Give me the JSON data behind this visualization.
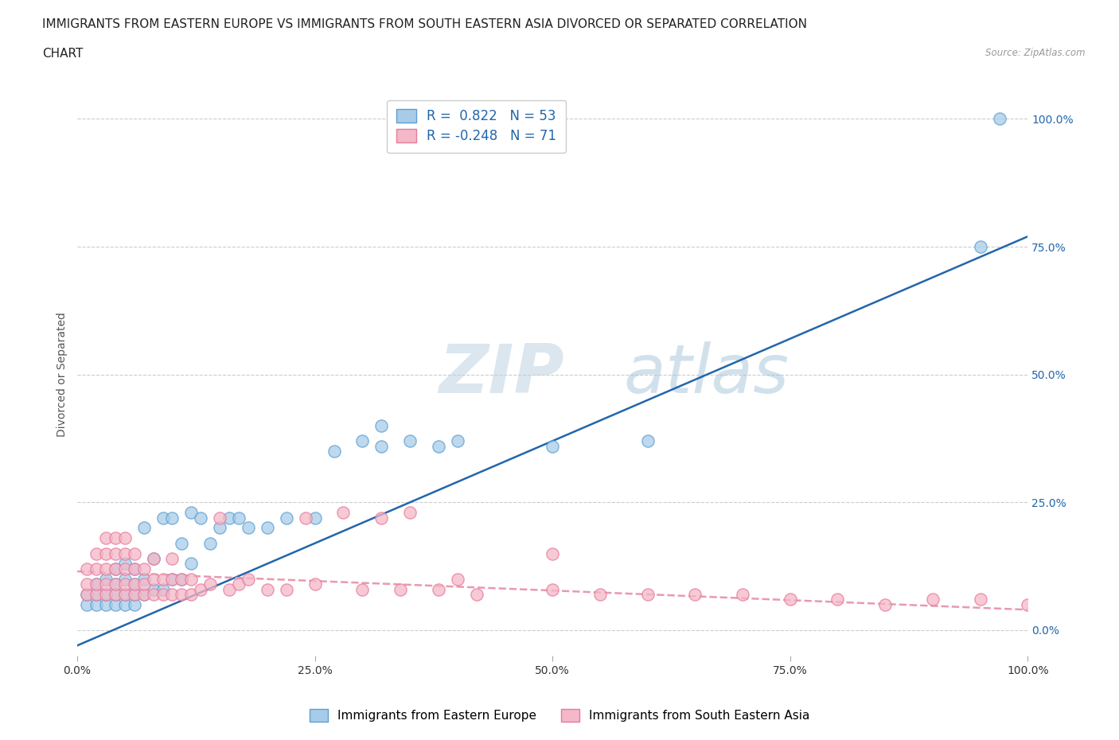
{
  "title_line1": "IMMIGRANTS FROM EASTERN EUROPE VS IMMIGRANTS FROM SOUTH EASTERN ASIA DIVORCED OR SEPARATED CORRELATION",
  "title_line2": "CHART",
  "source": "Source: ZipAtlas.com",
  "ylabel": "Divorced or Separated",
  "xlim": [
    0.0,
    1.0
  ],
  "ylim": [
    -0.05,
    1.05
  ],
  "x_ticks": [
    0.0,
    0.25,
    0.5,
    0.75,
    1.0
  ],
  "x_tick_labels": [
    "0.0%",
    "25.0%",
    "50.0%",
    "75.0%",
    "100.0%"
  ],
  "y_tick_labels": [
    "0.0%",
    "25.0%",
    "50.0%",
    "75.0%",
    "100.0%"
  ],
  "y_tick_vals": [
    0.0,
    0.25,
    0.5,
    0.75,
    1.0
  ],
  "watermark_zip": "ZIP",
  "watermark_atlas": "atlas",
  "blue_R": 0.822,
  "blue_N": 53,
  "pink_R": -0.248,
  "pink_N": 71,
  "blue_color": "#a8cce8",
  "pink_color": "#f4b8c8",
  "blue_edge_color": "#5a9fd4",
  "pink_edge_color": "#e87a9a",
  "blue_line_color": "#2166ac",
  "pink_line_color": "#e899b0",
  "blue_scatter_x": [
    0.01,
    0.01,
    0.02,
    0.02,
    0.02,
    0.03,
    0.03,
    0.03,
    0.04,
    0.04,
    0.04,
    0.04,
    0.05,
    0.05,
    0.05,
    0.05,
    0.06,
    0.06,
    0.06,
    0.06,
    0.07,
    0.07,
    0.07,
    0.08,
    0.08,
    0.09,
    0.09,
    0.1,
    0.1,
    0.11,
    0.11,
    0.12,
    0.12,
    0.13,
    0.14,
    0.15,
    0.16,
    0.17,
    0.18,
    0.2,
    0.22,
    0.25,
    0.27,
    0.3,
    0.32,
    0.32,
    0.35,
    0.38,
    0.4,
    0.5,
    0.6,
    0.95,
    0.97
  ],
  "blue_scatter_y": [
    0.05,
    0.07,
    0.05,
    0.07,
    0.09,
    0.05,
    0.07,
    0.1,
    0.05,
    0.07,
    0.09,
    0.12,
    0.05,
    0.07,
    0.1,
    0.13,
    0.05,
    0.07,
    0.09,
    0.12,
    0.07,
    0.1,
    0.2,
    0.08,
    0.14,
    0.08,
    0.22,
    0.1,
    0.22,
    0.1,
    0.17,
    0.13,
    0.23,
    0.22,
    0.17,
    0.2,
    0.22,
    0.22,
    0.2,
    0.2,
    0.22,
    0.22,
    0.35,
    0.37,
    0.36,
    0.4,
    0.37,
    0.36,
    0.37,
    0.36,
    0.37,
    0.75,
    1.0
  ],
  "pink_scatter_x": [
    0.01,
    0.01,
    0.01,
    0.02,
    0.02,
    0.02,
    0.02,
    0.03,
    0.03,
    0.03,
    0.03,
    0.03,
    0.04,
    0.04,
    0.04,
    0.04,
    0.04,
    0.05,
    0.05,
    0.05,
    0.05,
    0.05,
    0.06,
    0.06,
    0.06,
    0.06,
    0.07,
    0.07,
    0.07,
    0.08,
    0.08,
    0.08,
    0.09,
    0.09,
    0.1,
    0.1,
    0.1,
    0.11,
    0.11,
    0.12,
    0.12,
    0.13,
    0.14,
    0.15,
    0.16,
    0.17,
    0.18,
    0.2,
    0.22,
    0.24,
    0.25,
    0.28,
    0.3,
    0.32,
    0.34,
    0.35,
    0.38,
    0.4,
    0.42,
    0.5,
    0.55,
    0.6,
    0.65,
    0.7,
    0.75,
    0.8,
    0.85,
    0.9,
    0.95,
    1.0,
    0.5
  ],
  "pink_scatter_y": [
    0.07,
    0.09,
    0.12,
    0.07,
    0.09,
    0.12,
    0.15,
    0.07,
    0.09,
    0.12,
    0.15,
    0.18,
    0.07,
    0.09,
    0.12,
    0.15,
    0.18,
    0.07,
    0.09,
    0.12,
    0.15,
    0.18,
    0.07,
    0.09,
    0.12,
    0.15,
    0.07,
    0.09,
    0.12,
    0.07,
    0.1,
    0.14,
    0.07,
    0.1,
    0.07,
    0.1,
    0.14,
    0.07,
    0.1,
    0.07,
    0.1,
    0.08,
    0.09,
    0.22,
    0.08,
    0.09,
    0.1,
    0.08,
    0.08,
    0.22,
    0.09,
    0.23,
    0.08,
    0.22,
    0.08,
    0.23,
    0.08,
    0.1,
    0.07,
    0.08,
    0.07,
    0.07,
    0.07,
    0.07,
    0.06,
    0.06,
    0.05,
    0.06,
    0.06,
    0.05,
    0.15
  ],
  "blue_line": {
    "x0": 0.0,
    "x1": 1.0,
    "y0": -0.03,
    "y1": 0.77
  },
  "pink_line": {
    "x0": 0.0,
    "x1": 1.0,
    "y0": 0.115,
    "y1": 0.04
  },
  "grid_color": "#cccccc",
  "legend_label_blue": "Immigrants from Eastern Europe",
  "legend_label_pink": "Immigrants from South Eastern Asia",
  "background_color": "#ffffff",
  "title_color": "#222222",
  "title_fontsize": 11,
  "axis_label_fontsize": 10,
  "tick_fontsize": 10,
  "right_tick_color": "#2166ac"
}
